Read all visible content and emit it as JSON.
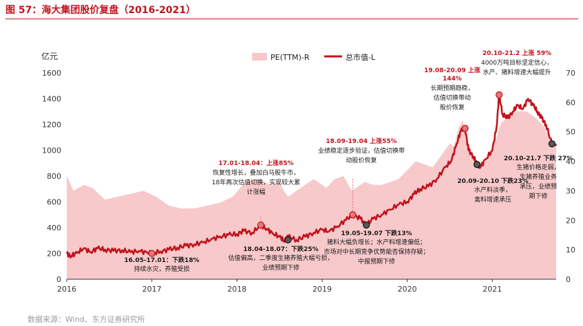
{
  "title": "图 57：海大集团股价复盘（2016-2021）",
  "source": "数据来源：Wind、东方证券研究所",
  "colors": {
    "accent": "#c0141c",
    "line": "#c0141c",
    "area": "#f7c9cb",
    "marker_red": "#e8757a",
    "marker_dark": "#595959",
    "text": "#1a1a1a",
    "axis_text": "#333333",
    "grid": "#cccccc"
  },
  "chart_data": {
    "type": "line",
    "left_axis_unit": "亿元",
    "left_ylim": [
      0,
      1600
    ],
    "left_ticks": [
      "0",
      "200",
      "400",
      "600",
      "800",
      "1000",
      "1200",
      "1400",
      "1600"
    ],
    "right_ylim": [
      0,
      70
    ],
    "right_ticks": [
      "0",
      "10",
      "20",
      "30",
      "40",
      "50",
      "60",
      "70"
    ],
    "xlim": [
      2016.0,
      2021.75
    ],
    "x_ticks": [
      {
        "x": 2016,
        "label": "2016"
      },
      {
        "x": 2017,
        "label": "2017"
      },
      {
        "x": 2018,
        "label": "2018"
      },
      {
        "x": 2019,
        "label": "2019"
      },
      {
        "x": 2020,
        "label": "2020"
      },
      {
        "x": 2021,
        "label": "2021"
      }
    ],
    "legend": [
      {
        "name": "PE(TTM)-R",
        "type": "area"
      },
      {
        "name": "总市值-L",
        "type": "line"
      }
    ],
    "series": [
      {
        "name": "总市值-L",
        "type": "line",
        "axis": "left",
        "x": [
          2016.0,
          2016.05,
          2016.12,
          2016.2,
          2016.28,
          2016.36,
          2016.45,
          2016.55,
          2016.65,
          2016.75,
          2016.85,
          2016.95,
          2017.0,
          2017.1,
          2017.2,
          2017.3,
          2017.4,
          2017.5,
          2017.6,
          2017.7,
          2017.8,
          2017.9,
          2018.0,
          2018.08,
          2018.18,
          2018.28,
          2018.35,
          2018.42,
          2018.5,
          2018.55,
          2018.6,
          2018.7,
          2018.8,
          2018.9,
          2019.0,
          2019.08,
          2019.18,
          2019.28,
          2019.36,
          2019.45,
          2019.52,
          2019.6,
          2019.7,
          2019.8,
          2019.9,
          2020.0,
          2020.08,
          2020.15,
          2020.25,
          2020.35,
          2020.45,
          2020.52,
          2020.58,
          2020.63,
          2020.68,
          2020.72,
          2020.78,
          2020.82,
          2020.86,
          2020.92,
          2021.0,
          2021.05,
          2021.08,
          2021.12,
          2021.18,
          2021.24,
          2021.3,
          2021.36,
          2021.42,
          2021.48,
          2021.53,
          2021.58,
          2021.63,
          2021.7,
          2021.75
        ],
        "values": [
          200,
          180,
          205,
          240,
          210,
          240,
          230,
          220,
          225,
          210,
          220,
          205,
          200,
          215,
          230,
          245,
          260,
          270,
          285,
          310,
          330,
          345,
          350,
          375,
          360,
          420,
          390,
          355,
          330,
          300,
          330,
          305,
          330,
          360,
          385,
          370,
          410,
          460,
          500,
          470,
          420,
          470,
          500,
          540,
          580,
          600,
          660,
          700,
          720,
          780,
          870,
          920,
          1050,
          1150,
          1170,
          1000,
          950,
          890,
          870,
          930,
          1000,
          1180,
          1430,
          1280,
          1250,
          1300,
          1350,
          1320,
          1400,
          1350,
          1300,
          1250,
          1200,
          1050,
          1050
        ]
      },
      {
        "name": "PE(TTM)-R",
        "type": "area",
        "axis": "right",
        "x": [
          2016.0,
          2016.08,
          2016.2,
          2016.3,
          2016.45,
          2016.6,
          2016.75,
          2016.9,
          2017.05,
          2017.2,
          2017.35,
          2017.5,
          2017.65,
          2017.8,
          2017.95,
          2018.1,
          2018.25,
          2018.4,
          2018.5,
          2018.55,
          2018.6,
          2018.75,
          2018.9,
          2019.05,
          2019.15,
          2019.25,
          2019.35,
          2019.5,
          2019.6,
          2019.7,
          2019.8,
          2019.9,
          2020.0,
          2020.1,
          2020.2,
          2020.3,
          2020.4,
          2020.5,
          2020.55,
          2020.6,
          2020.65,
          2020.7,
          2020.8,
          2020.9,
          2021.0,
          2021.05,
          2021.1,
          2021.15,
          2021.2,
          2021.3,
          2021.4,
          2021.5,
          2021.6,
          2021.68,
          2021.75
        ],
        "values": [
          35,
          30,
          32,
          31,
          27,
          28,
          29,
          30,
          28,
          25,
          24,
          24,
          25,
          26,
          28,
          33,
          34,
          32,
          33,
          30,
          28,
          31,
          34,
          31,
          34,
          35,
          30,
          33,
          32,
          32,
          33,
          34,
          37,
          40,
          39,
          38,
          42,
          46,
          45,
          51,
          54,
          48,
          40,
          39,
          44,
          48,
          53,
          54,
          56,
          57,
          57,
          55,
          52,
          48,
          45
        ]
      }
    ],
    "markers": [
      {
        "x": 2017.0,
        "y": 200,
        "style": "red"
      },
      {
        "x": 2018.28,
        "y": 420,
        "style": "red"
      },
      {
        "x": 2018.6,
        "y": 305,
        "style": "dark"
      },
      {
        "x": 2019.36,
        "y": 500,
        "style": "red"
      },
      {
        "x": 2019.52,
        "y": 420,
        "style": "dark"
      },
      {
        "x": 2020.68,
        "y": 1170,
        "style": "red"
      },
      {
        "x": 2020.82,
        "y": 890,
        "style": "dark"
      },
      {
        "x": 2021.08,
        "y": 1430,
        "style": "red"
      },
      {
        "x": 2021.7,
        "y": 1050,
        "style": "dark"
      }
    ],
    "annotations": [
      {
        "heading": "",
        "body": [
          "16.05-17.01：下跌18%",
          "持续水灾，养殖受损"
        ]
      },
      {
        "heading": "17.01-18.04：上涨85%",
        "body": [
          "恢复性增长，叠加白马股牛市，",
          "18年再次估值切换，实现较大累",
          "计涨幅"
        ]
      },
      {
        "heading": "",
        "body": [
          "18.04-18.07：下跌25%",
          "估值偏高，二季度生猪养殖大幅亏损，",
          "业绩预期下修"
        ]
      },
      {
        "heading": "18.09-19.04 上涨55%",
        "body": [
          "业绩稳定逐步验证，估值切换带",
          "动股价恢复"
        ]
      },
      {
        "heading": "",
        "body": [
          "19.05-19.07 下跌13%",
          "猪料大幅负增长；水产料增速偏低；",
          "市场对中长期竞争优势能否保持存疑；",
          "中报预期下修"
        ]
      },
      {
        "heading": "19.08-20.09 上涨 144%",
        "body": [
          "长期预期趋稳，",
          "估值切换带动",
          "股价恢复"
        ]
      },
      {
        "heading": "",
        "body": [
          "20.09-20.10 下跌23%",
          "水产料淡季，",
          "禽料增速承压"
        ]
      },
      {
        "heading": "20.10-21.2 上涨 59%",
        "body": [
          "4000万吨目标坚定信心，",
          "水产、猪料增速大幅提升"
        ]
      },
      {
        "heading": "",
        "body": [
          "20.10-21.7 下跌 27%",
          "生猪价格走弱，",
          "生猪养殖业务",
          "承压，业绩预",
          "期下修"
        ]
      }
    ]
  }
}
